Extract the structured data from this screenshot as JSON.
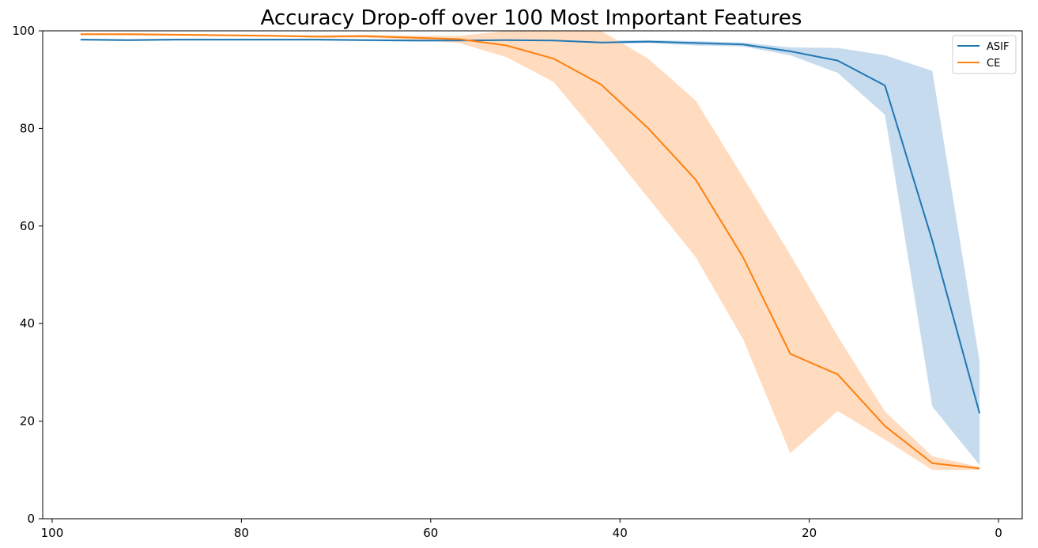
{
  "chart_data": {
    "type": "line",
    "title": "Accuracy Drop-off over 100 Most Important Features",
    "xlabel": "",
    "ylabel": "",
    "xlim": [
      101,
      -2.5
    ],
    "ylim": [
      0,
      100
    ],
    "x_inverted": true,
    "xticks": [
      100,
      80,
      60,
      40,
      20,
      0
    ],
    "yticks": [
      0,
      20,
      40,
      60,
      80,
      100
    ],
    "grid": false,
    "legend_position": "top-right",
    "x": [
      97,
      92,
      87,
      82,
      77,
      72,
      67,
      62,
      57,
      52,
      47,
      42,
      37,
      32,
      27,
      22,
      17,
      12,
      7,
      2
    ],
    "series": [
      {
        "name": "ASIF",
        "color": "#1f77b4",
        "band_color": "#c6dbed",
        "values": [
          98.2,
          98.1,
          98.2,
          98.2,
          98.2,
          98.2,
          98.1,
          98.0,
          98.0,
          98.1,
          98.0,
          97.6,
          97.8,
          97.5,
          97.2,
          95.8,
          93.9,
          88.8,
          57.0,
          21.6
        ],
        "lower": [
          98.0,
          97.9,
          98.0,
          98.0,
          98.0,
          98.0,
          97.9,
          97.8,
          97.8,
          97.9,
          97.8,
          97.3,
          97.5,
          97.0,
          96.8,
          95.0,
          91.4,
          82.8,
          23.0,
          11.0
        ],
        "upper": [
          98.4,
          98.3,
          98.4,
          98.4,
          98.4,
          98.4,
          98.3,
          98.2,
          98.2,
          98.3,
          98.3,
          98.0,
          98.1,
          97.9,
          97.6,
          96.6,
          96.5,
          95.0,
          91.8,
          32.2
        ]
      },
      {
        "name": "CE",
        "color": "#ff7f0e",
        "band_color": "#ffdcc0",
        "values": [
          99.3,
          99.3,
          99.2,
          99.1,
          99.0,
          98.8,
          98.9,
          98.6,
          98.3,
          97.0,
          94.3,
          89.0,
          80.0,
          69.5,
          53.6,
          33.8,
          29.6,
          19.0,
          11.4,
          10.3
        ],
        "lower": [
          99.1,
          99.1,
          99.0,
          98.9,
          98.8,
          98.6,
          98.6,
          98.2,
          97.5,
          94.6,
          89.5,
          77.8,
          65.7,
          53.6,
          36.8,
          13.4,
          22.1,
          16.2,
          10.0,
          10.0
        ],
        "upper": [
          99.5,
          99.5,
          99.4,
          99.3,
          99.2,
          99.1,
          99.2,
          99.0,
          99.0,
          100.0,
          100.0,
          100.0,
          94.3,
          85.7,
          70.0,
          54.1,
          37.4,
          22.0,
          12.8,
          10.6
        ]
      }
    ]
  }
}
